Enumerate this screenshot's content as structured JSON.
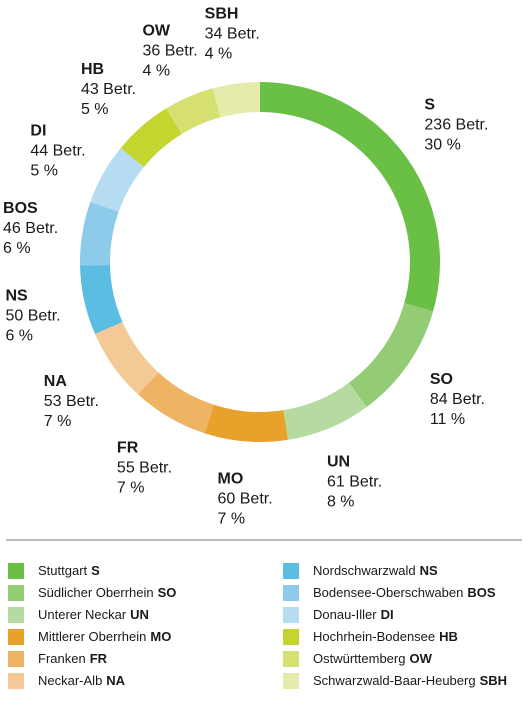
{
  "chart_data": {
    "type": "donut",
    "categories": [
      "S",
      "SO",
      "UN",
      "MO",
      "FR",
      "NA",
      "NS",
      "BOS",
      "DI",
      "HB",
      "OW",
      "SBH"
    ],
    "names": [
      "Stuttgart",
      "Südlicher Oberrhein",
      "Unterer Neckar",
      "Mittlerer Oberrhein",
      "Franken",
      "Neckar-Alb",
      "Nordschwarzwald",
      "Bodensee-Oberschwaben",
      "Donau-Iller",
      "Hochrhein-Bodensee",
      "Ostwürttemberg",
      "Schwarzwald-Baar-Heuberg"
    ],
    "values": [
      236,
      84,
      61,
      60,
      55,
      53,
      50,
      46,
      44,
      43,
      36,
      34
    ],
    "value_labels": [
      "236 Betr.",
      "84 Betr.",
      "61 Betr.",
      "60 Betr.",
      "55 Betr.",
      "53 Betr.",
      "50 Betr.",
      "46 Betr.",
      "44 Betr.",
      "43 Betr.",
      "36 Betr.",
      "34 Betr."
    ],
    "percent_labels": [
      "30 %",
      "11 %",
      "8 %",
      "7 %",
      "7 %",
      "7 %",
      "6 %",
      "6 %",
      "5 %",
      "5 %",
      "4 %",
      "4 %"
    ],
    "colors": [
      "#6abf45",
      "#93cc74",
      "#b5dba0",
      "#e8a22c",
      "#eeb463",
      "#f3ca95",
      "#5bbde2",
      "#8ccbe9",
      "#b5dcf1",
      "#c5d52f",
      "#d6e070",
      "#e5ebaa"
    ]
  }
}
